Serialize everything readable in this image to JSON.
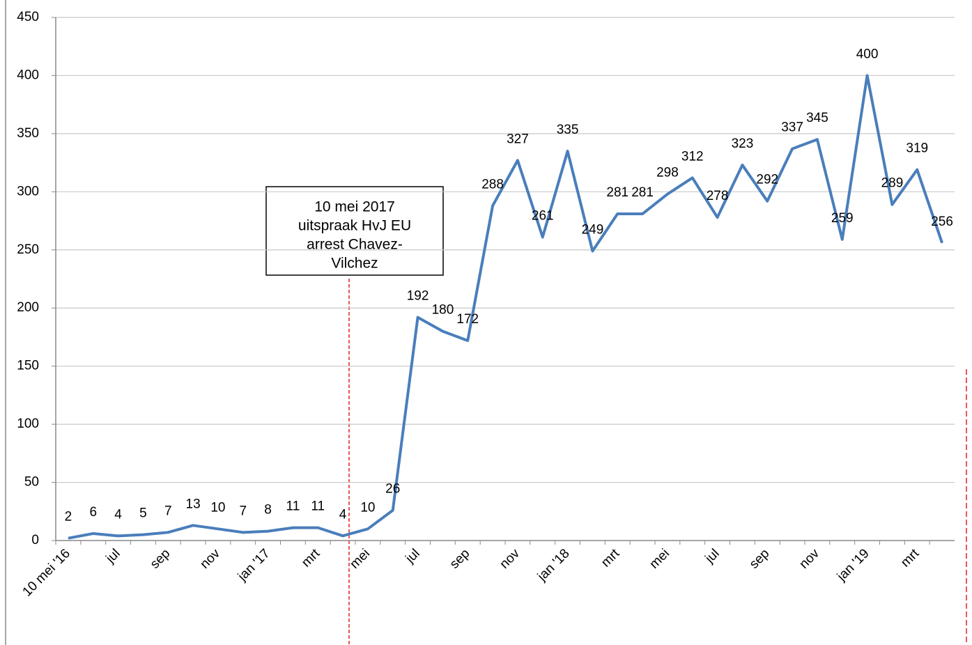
{
  "chart_data": {
    "type": "line",
    "categories": [
      "10 mei '16",
      null,
      "jul",
      null,
      "sep",
      null,
      "nov",
      null,
      "jan '17",
      null,
      "mrt",
      null,
      "mei",
      null,
      "jul",
      null,
      "sep",
      null,
      "nov",
      null,
      "jan '18",
      null,
      "mrt",
      null,
      "mei",
      null,
      "jul",
      null,
      "sep",
      null,
      "nov",
      null,
      "jan '19",
      null,
      "mrt",
      null
    ],
    "series": [
      {
        "color": "#4a7ebb",
        "values": [
          2,
          6,
          4,
          5,
          7,
          13,
          10,
          7,
          8,
          11,
          11,
          4,
          10,
          26,
          192,
          180,
          172,
          288,
          327,
          261,
          335,
          249,
          281,
          281,
          298,
          312,
          278,
          323,
          292,
          337,
          345,
          259,
          400,
          289,
          319,
          256
        ]
      }
    ],
    "ylim": [
      0,
      450
    ],
    "yticks": [
      0,
      50,
      100,
      150,
      200,
      250,
      300,
      350,
      400,
      450
    ],
    "grid": true,
    "annotation": [
      "10 mei 2017",
      "uitspraak HvJ EU",
      "arrest Chavez-",
      "Vilchez"
    ]
  }
}
